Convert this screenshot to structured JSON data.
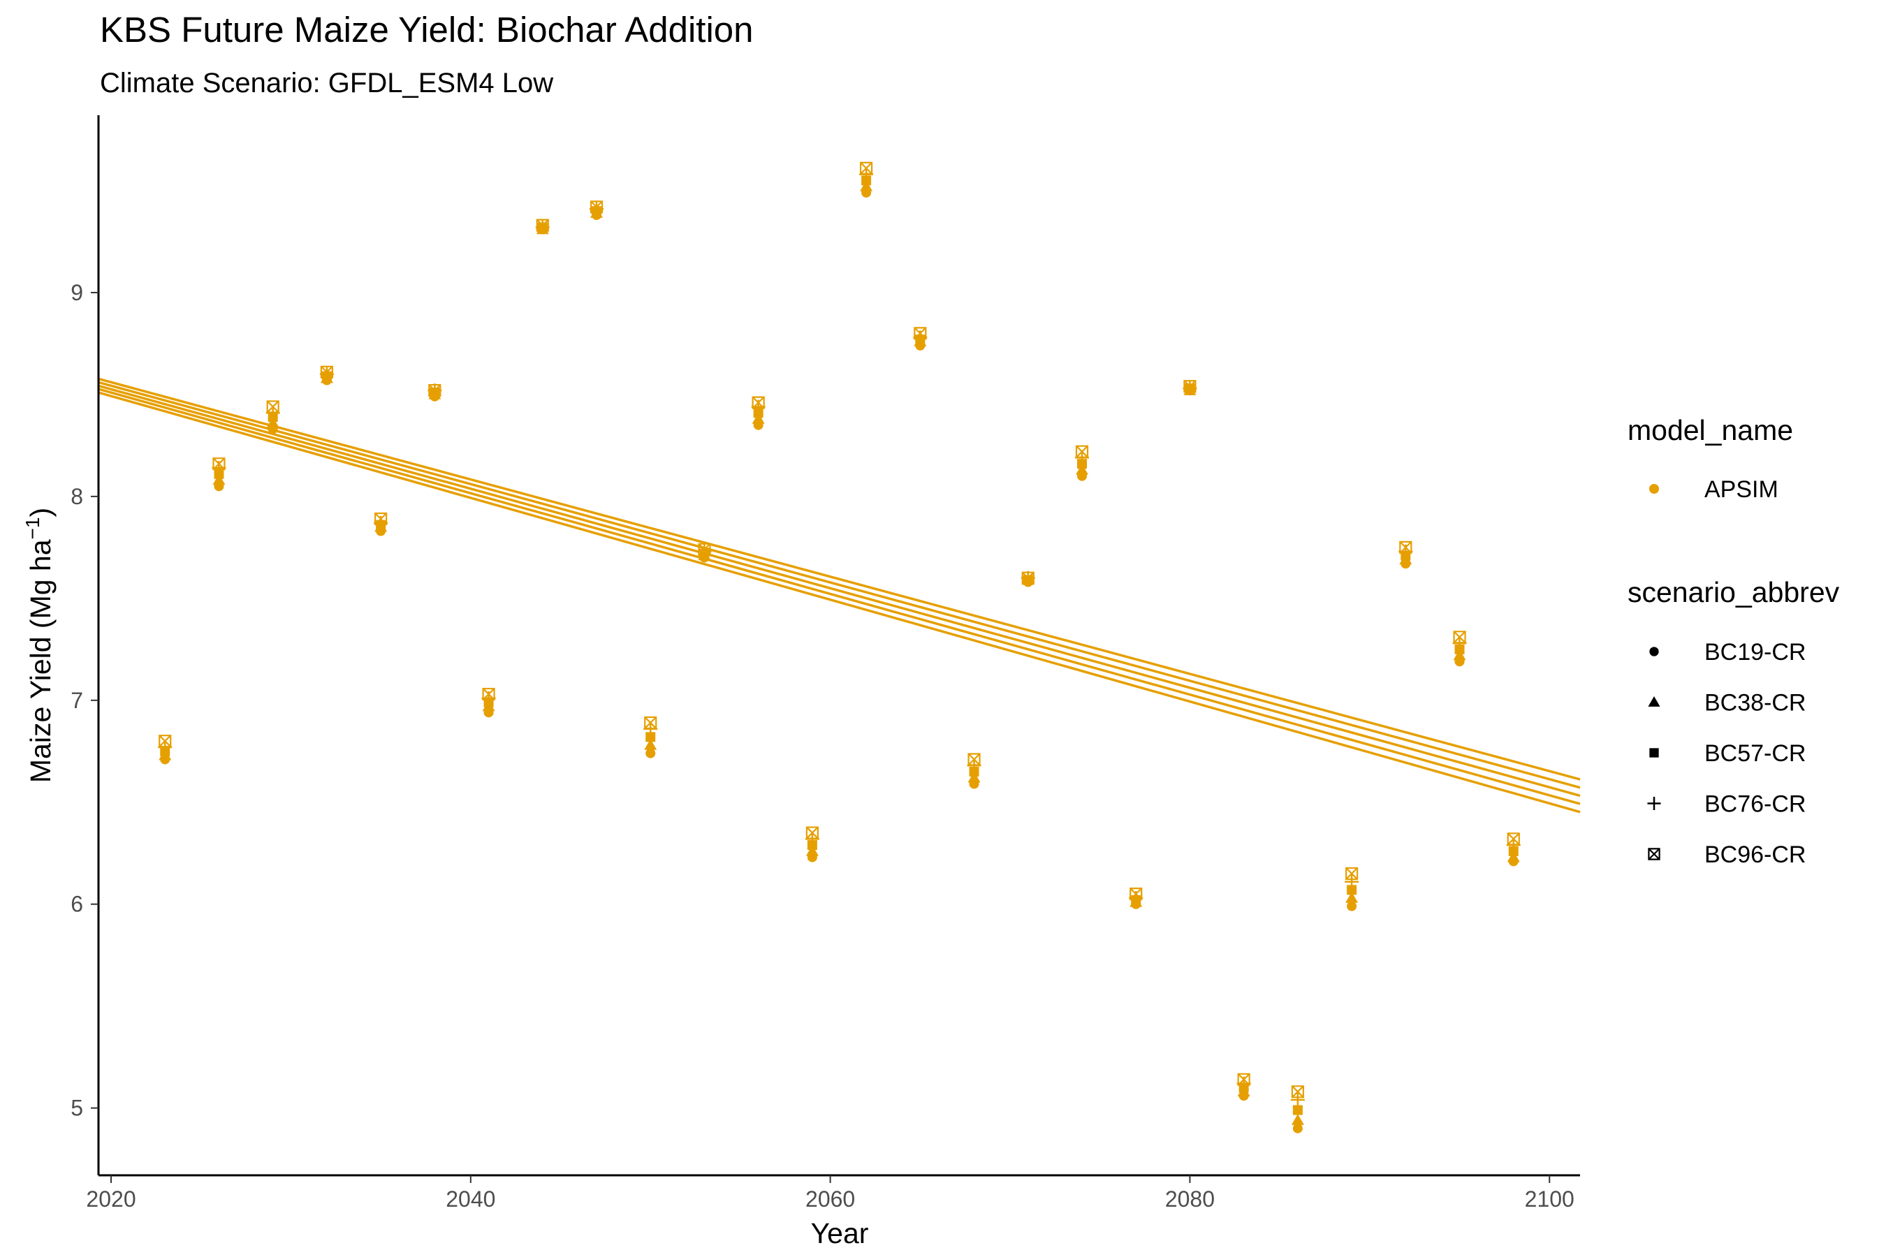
{
  "chart_data": {
    "type": "scatter",
    "title": "KBS Future Maize Yield: Biochar Addition",
    "subtitle": "Climate Scenario: GFDL_ESM4 Low",
    "xlabel": "Year",
    "ylabel": {
      "main": "Maize Yield (Mg ha",
      "sup": "−1",
      "close": ")"
    },
    "xlim": [
      2019.3,
      2101.7
    ],
    "ylim": [
      4.67,
      9.87
    ],
    "x_ticks": [
      2020,
      2040,
      2060,
      2080,
      2100
    ],
    "y_ticks": [
      5,
      6,
      7,
      8,
      9
    ],
    "grid": false,
    "color": "#E69F00",
    "legend_position": "right",
    "legend_color": {
      "title": "model_name",
      "items": [
        {
          "label": "APSIM",
          "color": "#E69F00"
        }
      ]
    },
    "legend_shape": {
      "title": "scenario_abbrev",
      "items": [
        {
          "label": "BC19-CR",
          "shape": "circle"
        },
        {
          "label": "BC38-CR",
          "shape": "triangle"
        },
        {
          "label": "BC57-CR",
          "shape": "square"
        },
        {
          "label": "BC76-CR",
          "shape": "plus"
        },
        {
          "label": "BC96-CR",
          "shape": "square-x"
        }
      ]
    },
    "x": [
      2023,
      2026,
      2029,
      2032,
      2035,
      2038,
      2041,
      2044,
      2047,
      2050,
      2053,
      2056,
      2059,
      2062,
      2065,
      2068,
      2071,
      2074,
      2077,
      2080,
      2083,
      2086,
      2089,
      2092,
      2095,
      2098
    ],
    "series": [
      {
        "name": "BC19-CR",
        "shape": "circle",
        "values": [
          6.71,
          8.05,
          8.33,
          8.57,
          7.83,
          8.49,
          6.94,
          9.31,
          9.38,
          6.74,
          7.7,
          8.35,
          6.23,
          9.49,
          8.74,
          6.59,
          7.58,
          8.1,
          6.0,
          8.52,
          5.06,
          4.9,
          5.99,
          7.67,
          7.19,
          6.21
        ],
        "fit": [
          8.51,
          6.452
        ]
      },
      {
        "name": "BC38-CR",
        "shape": "triangle",
        "values": [
          6.73,
          8.08,
          8.36,
          8.58,
          7.85,
          8.5,
          6.97,
          9.31,
          9.39,
          6.78,
          7.71,
          8.38,
          6.26,
          9.52,
          8.76,
          6.62,
          7.59,
          8.13,
          6.01,
          8.52,
          5.08,
          4.94,
          6.03,
          7.69,
          7.22,
          6.23
        ],
        "fit": [
          8.527,
          6.492
        ]
      },
      {
        "name": "BC57-CR",
        "shape": "square",
        "values": [
          6.75,
          8.11,
          8.39,
          8.59,
          7.86,
          8.51,
          6.99,
          9.32,
          9.4,
          6.82,
          7.72,
          8.41,
          6.29,
          9.55,
          8.77,
          6.65,
          7.59,
          8.16,
          6.02,
          8.53,
          5.1,
          4.99,
          6.07,
          7.71,
          7.25,
          6.26
        ],
        "fit": [
          8.543,
          6.532
        ]
      },
      {
        "name": "BC76-CR",
        "shape": "plus",
        "values": [
          6.77,
          8.14,
          8.41,
          8.6,
          7.87,
          8.52,
          7.01,
          9.32,
          9.41,
          6.86,
          7.73,
          8.44,
          6.32,
          9.58,
          8.78,
          6.68,
          7.6,
          8.19,
          6.03,
          8.53,
          5.12,
          5.04,
          6.11,
          7.73,
          7.28,
          6.29
        ],
        "fit": [
          8.56,
          6.572
        ]
      },
      {
        "name": "BC96-CR",
        "shape": "square-x",
        "values": [
          6.8,
          8.16,
          8.44,
          8.61,
          7.89,
          8.52,
          7.03,
          9.33,
          9.42,
          6.89,
          7.74,
          8.46,
          6.35,
          9.61,
          8.8,
          6.71,
          7.6,
          8.22,
          6.05,
          8.54,
          5.14,
          5.08,
          6.15,
          7.75,
          7.31,
          6.32
        ],
        "fit": [
          8.577,
          6.612
        ]
      }
    ]
  }
}
